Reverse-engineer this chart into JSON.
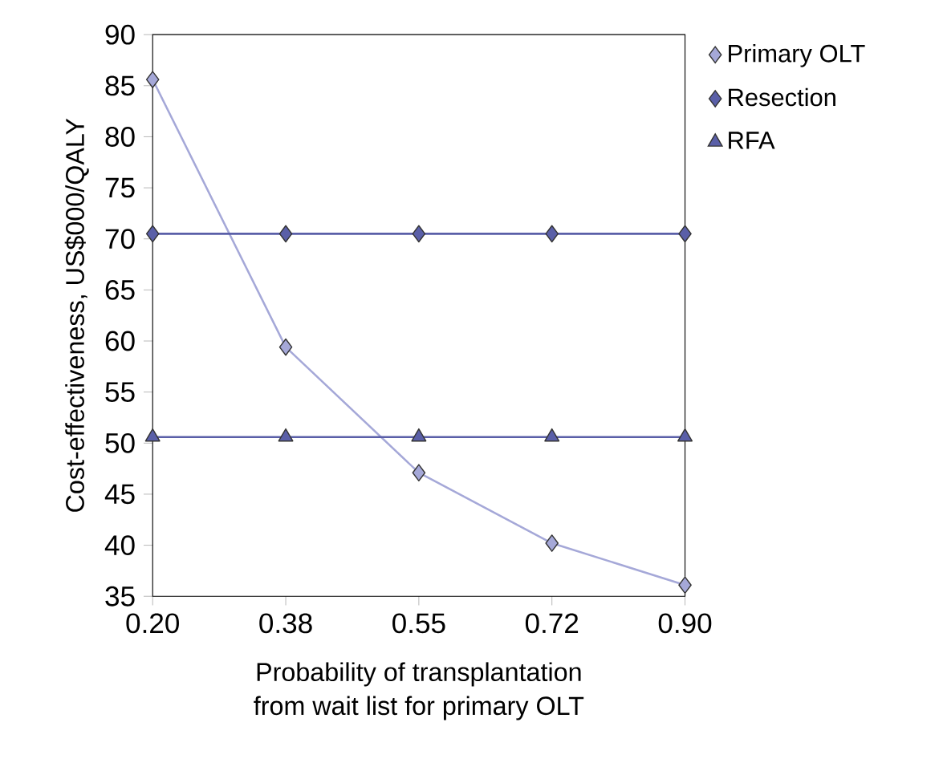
{
  "chart_data": {
    "type": "line",
    "xlabel": "Probability of transplantation\nfrom wait list for primary OLT",
    "ylabel": "Cost-effectiveness, US$000/QALY",
    "categories": [
      "0.20",
      "0.38",
      "0.55",
      "0.72",
      "0.90"
    ],
    "ylim": [
      35,
      90
    ],
    "yticks": [
      35,
      40,
      45,
      50,
      55,
      60,
      65,
      70,
      75,
      80,
      85,
      90
    ],
    "legend": "right",
    "grid": false,
    "series": [
      {
        "name": "Primary OLT",
        "color": "#a5a8d8",
        "marker": "diamond",
        "values": [
          85.6,
          59.4,
          47.1,
          40.2,
          36.1
        ]
      },
      {
        "name": "Resection",
        "color": "#5a5fa8",
        "marker": "diamond",
        "values": [
          70.5,
          70.5,
          70.5,
          70.5,
          70.5
        ]
      },
      {
        "name": "RFA",
        "color": "#5a5fa8",
        "marker": "triangle",
        "values": [
          50.6,
          50.6,
          50.6,
          50.6,
          50.6
        ]
      }
    ]
  }
}
